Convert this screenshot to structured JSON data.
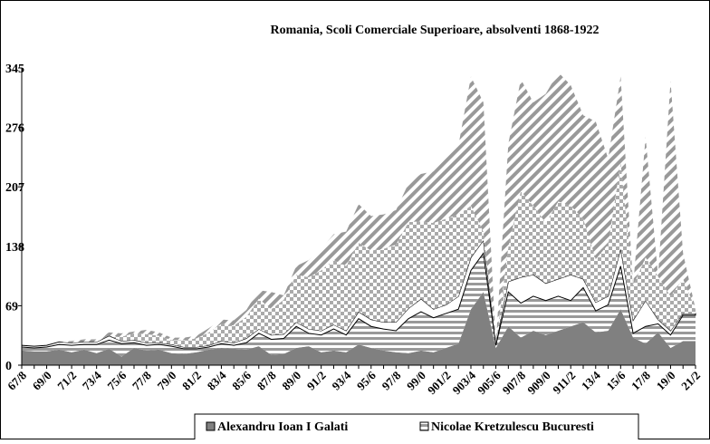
{
  "chart_data": {
    "type": "area",
    "title": "Romania, Scoli Comerciale Superioare, absolventi 1868-1922",
    "categories": [
      "67/8",
      null,
      "69/0",
      null,
      "71/2",
      null,
      "73/4",
      null,
      "75/6",
      null,
      "77/8",
      null,
      "79/0",
      null,
      "81/2",
      null,
      "83/4",
      null,
      "85/6",
      null,
      "87/8",
      null,
      "89/0",
      null,
      "91/2",
      null,
      "93/4",
      null,
      "95/6",
      null,
      "97/8",
      null,
      "99/0",
      null,
      "901/2",
      null,
      "903/4",
      null,
      "905/6",
      null,
      "907/8",
      null,
      "909/0",
      null,
      "911/2",
      null,
      "13/4",
      null,
      "15/6",
      null,
      "17/8",
      null,
      "19/0",
      null,
      "21/2"
    ],
    "ylim": [
      0,
      345
    ],
    "yticks": [
      0,
      69,
      138,
      207,
      276,
      345
    ],
    "stacked": true,
    "series": [
      {
        "name": "Alexandru Ioan I Galati",
        "color": "#808080",
        "values": [
          17,
          16,
          16,
          18,
          15,
          18,
          14,
          19,
          10,
          20,
          17,
          18,
          14,
          13,
          15,
          18,
          20,
          19,
          18,
          22,
          12,
          13,
          20,
          22,
          15,
          17,
          15,
          24,
          20,
          17,
          15,
          14,
          17,
          15,
          20,
          25,
          65,
          85,
          20,
          45,
          32,
          40,
          35,
          40,
          45,
          50,
          38,
          40,
          65,
          32,
          25,
          38,
          20,
          28,
          28
        ]
      },
      {
        "name": "Nicolae Kretzulescu Bucuresti",
        "color": "#808080",
        "values": [
          4,
          4,
          5,
          6,
          8,
          6,
          10,
          10,
          15,
          6,
          6,
          6,
          8,
          6,
          4,
          3,
          5,
          4,
          8,
          15,
          18,
          18,
          25,
          15,
          20,
          25,
          20,
          30,
          25,
          25,
          25,
          40,
          45,
          40,
          40,
          40,
          45,
          45,
          3,
          40,
          40,
          40,
          40,
          40,
          30,
          40,
          25,
          30,
          50,
          5,
          20,
          10,
          15,
          30,
          30
        ]
      },
      {
        "color": "#ffffff",
        "values": [
          2,
          2,
          2,
          3,
          3,
          3,
          3,
          5,
          3,
          3,
          3,
          2,
          2,
          2,
          2,
          2,
          3,
          3,
          5,
          5,
          5,
          5,
          5,
          5,
          5,
          5,
          5,
          8,
          8,
          8,
          10,
          12,
          15,
          10,
          10,
          15,
          15,
          15,
          2,
          12,
          30,
          25,
          20,
          20,
          30,
          10,
          10,
          10,
          20,
          15,
          30,
          5,
          5,
          2,
          2
        ]
      },
      {
        "color": "#999999",
        "values": [
          0,
          0,
          0,
          0,
          0,
          0,
          0,
          0,
          5,
          8,
          10,
          8,
          5,
          8,
          10,
          15,
          20,
          20,
          25,
          35,
          30,
          40,
          55,
          60,
          70,
          75,
          75,
          80,
          80,
          85,
          90,
          100,
          90,
          100,
          100,
          95,
          60,
          10,
          0,
          40,
          100,
          80,
          70,
          90,
          80,
          70,
          50,
          60,
          100,
          40,
          50,
          50,
          40,
          40,
          5
        ]
      },
      {
        "color": "#999999",
        "values": [
          0,
          0,
          0,
          0,
          2,
          3,
          3,
          4,
          4,
          2,
          5,
          4,
          3,
          3,
          3,
          5,
          5,
          6,
          8,
          10,
          20,
          5,
          10,
          20,
          25,
          30,
          40,
          45,
          40,
          40,
          40,
          45,
          55,
          60,
          70,
          80,
          150,
          150,
          0,
          120,
          130,
          120,
          150,
          150,
          140,
          120,
          160,
          100,
          100,
          0,
          140,
          0,
          250,
          30,
          0
        ]
      }
    ]
  }
}
